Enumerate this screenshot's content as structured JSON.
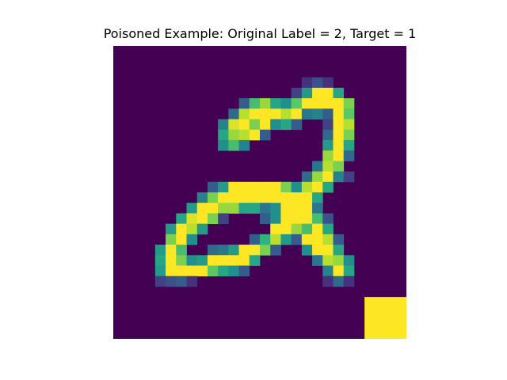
{
  "figure": {
    "title": "Poisoned Example: Original Label = 2, Target = 1"
  },
  "image": {
    "grid_size": 28,
    "colormap": "viridis",
    "background_color": "#440154",
    "trigger": {
      "description_color": "#fde725",
      "rows": [
        24,
        27
      ],
      "cols": [
        24,
        27
      ]
    },
    "pixels": [
      [
        0,
        0,
        0,
        0,
        0,
        0,
        0,
        0,
        0,
        0,
        0,
        0,
        0,
        0,
        0,
        0,
        0,
        0,
        0,
        0,
        0,
        0,
        0,
        0,
        0,
        0,
        0,
        0
      ],
      [
        0,
        0,
        0,
        0,
        0,
        0,
        0,
        0,
        0,
        0,
        0,
        0,
        0,
        0,
        0,
        0,
        0,
        0,
        0,
        0,
        0,
        0,
        0,
        0,
        0,
        0,
        0,
        0
      ],
      [
        0,
        0,
        0,
        0,
        0,
        0,
        0,
        0,
        0,
        0,
        0,
        0,
        0,
        0,
        0,
        0,
        0,
        0,
        0,
        0,
        0,
        0,
        0,
        0,
        0,
        0,
        0,
        0
      ],
      [
        0,
        0,
        0,
        0,
        0,
        0,
        0,
        0,
        0,
        0,
        0,
        0,
        0,
        0,
        0,
        0,
        0,
        0,
        0.15,
        0.25,
        0.15,
        0,
        0,
        0,
        0,
        0,
        0,
        0
      ],
      [
        0,
        0,
        0,
        0,
        0,
        0,
        0,
        0,
        0,
        0,
        0,
        0,
        0,
        0,
        0,
        0,
        0,
        0.2,
        0.55,
        1,
        1,
        0.6,
        0,
        0,
        0,
        0,
        0,
        0
      ],
      [
        0,
        0,
        0,
        0,
        0,
        0,
        0,
        0,
        0,
        0,
        0,
        0,
        0.3,
        0.7,
        0.85,
        0.6,
        0.5,
        0.75,
        1,
        1,
        1,
        1,
        0.8,
        0,
        0,
        0,
        0,
        0
      ],
      [
        0,
        0,
        0,
        0,
        0,
        0,
        0,
        0,
        0,
        0,
        0,
        0.35,
        0.9,
        1,
        1,
        1,
        0.9,
        1,
        0.4,
        0.45,
        0.3,
        1,
        0.75,
        0,
        0,
        0,
        0,
        0
      ],
      [
        0,
        0,
        0,
        0,
        0,
        0,
        0,
        0,
        0,
        0,
        0.45,
        0.95,
        1,
        0.8,
        1,
        0.5,
        0.6,
        0.3,
        0,
        0,
        0.2,
        1,
        0.9,
        0,
        0,
        0,
        0,
        0
      ],
      [
        0,
        0,
        0,
        0,
        0,
        0,
        0,
        0,
        0,
        0,
        0.6,
        0.85,
        0.9,
        1,
        0.3,
        0,
        0,
        0,
        0,
        0,
        0.35,
        1,
        0.8,
        0,
        0,
        0,
        0,
        0
      ],
      [
        0,
        0,
        0,
        0,
        0,
        0,
        0,
        0,
        0,
        0,
        0.5,
        0.7,
        0.45,
        0,
        0,
        0,
        0,
        0,
        0,
        0,
        0.55,
        1,
        0.6,
        0,
        0,
        0,
        0,
        0
      ],
      [
        0,
        0,
        0,
        0,
        0,
        0,
        0,
        0,
        0,
        0,
        0,
        0,
        0,
        0,
        0,
        0,
        0,
        0,
        0,
        0,
        0.85,
        1,
        0.35,
        0,
        0,
        0,
        0,
        0
      ],
      [
        0,
        0,
        0,
        0,
        0,
        0,
        0,
        0,
        0,
        0,
        0,
        0,
        0,
        0,
        0,
        0,
        0,
        0,
        0,
        0.4,
        0.9,
        0.8,
        0,
        0,
        0,
        0,
        0,
        0
      ],
      [
        0,
        0,
        0,
        0,
        0,
        0,
        0,
        0,
        0,
        0,
        0,
        0,
        0,
        0,
        0,
        0,
        0,
        0,
        0.35,
        0.85,
        1,
        0.45,
        0.2,
        0,
        0,
        0,
        0,
        0
      ],
      [
        0,
        0,
        0,
        0,
        0,
        0,
        0,
        0,
        0,
        0.3,
        0.55,
        1,
        1,
        1,
        1,
        1,
        0.8,
        0.5,
        0.9,
        1,
        0.6,
        0,
        0,
        0,
        0,
        0,
        0,
        0
      ],
      [
        0,
        0,
        0,
        0,
        0,
        0,
        0,
        0,
        0.45,
        0.8,
        1,
        1,
        1,
        1,
        1,
        1,
        1,
        1,
        1,
        0.6,
        0,
        0,
        0,
        0,
        0,
        0,
        0,
        0
      ],
      [
        0,
        0,
        0,
        0,
        0,
        0,
        0,
        0.55,
        1,
        1,
        0.85,
        0.85,
        0.6,
        0.6,
        0.4,
        0.5,
        1,
        1,
        1,
        0.4,
        0,
        0,
        0,
        0,
        0,
        0,
        0,
        0
      ],
      [
        0,
        0,
        0,
        0,
        0,
        0,
        0.6,
        0.95,
        1,
        0.8,
        0.2,
        0,
        0,
        0,
        0.3,
        0.5,
        1,
        1,
        1,
        0.7,
        0.25,
        0,
        0,
        0,
        0,
        0,
        0,
        0
      ],
      [
        0,
        0,
        0,
        0,
        0,
        0.55,
        1,
        0.9,
        0.55,
        0,
        0,
        0,
        0,
        0,
        0,
        1,
        1,
        0.85,
        0.7,
        1,
        0.6,
        0,
        0,
        0,
        0,
        0,
        0,
        0
      ],
      [
        0,
        0,
        0,
        0,
        0,
        0.8,
        1,
        0.5,
        0,
        0,
        0,
        0,
        0,
        0.3,
        0.65,
        0.9,
        0.55,
        0.3,
        1,
        1,
        0.9,
        0.3,
        0,
        0,
        0,
        0,
        0,
        0
      ],
      [
        0,
        0,
        0,
        0,
        0.55,
        1,
        0.7,
        0,
        0,
        0.35,
        0.4,
        0.55,
        1,
        1,
        0.8,
        0.3,
        0,
        0,
        0.5,
        1,
        1,
        0.6,
        0,
        0,
        0,
        0,
        0,
        0
      ],
      [
        0,
        0,
        0,
        0,
        0.6,
        1,
        0.8,
        0.5,
        0.55,
        1,
        1,
        1,
        1,
        0.6,
        0,
        0,
        0,
        0,
        0,
        0.4,
        0.9,
        0.85,
        0.5,
        0,
        0,
        0,
        0,
        0
      ],
      [
        0,
        0,
        0,
        0,
        0.55,
        1,
        1,
        1,
        1,
        0.75,
        0.6,
        0.5,
        0.3,
        0,
        0,
        0,
        0,
        0,
        0,
        0,
        0.45,
        1,
        0.6,
        0,
        0,
        0,
        0,
        0
      ],
      [
        0,
        0,
        0,
        0,
        0.2,
        0.25,
        0.3,
        0.15,
        0,
        0,
        0,
        0,
        0,
        0,
        0,
        0,
        0,
        0,
        0,
        0,
        0.15,
        0.35,
        0.15,
        0,
        0,
        0,
        0,
        0
      ],
      [
        0,
        0,
        0,
        0,
        0,
        0,
        0,
        0,
        0,
        0,
        0,
        0,
        0,
        0,
        0,
        0,
        0,
        0,
        0,
        0,
        0,
        0,
        0,
        0,
        0,
        0,
        0,
        0
      ],
      [
        0,
        0,
        0,
        0,
        0,
        0,
        0,
        0,
        0,
        0,
        0,
        0,
        0,
        0,
        0,
        0,
        0,
        0,
        0,
        0,
        0,
        0,
        0,
        0,
        1,
        1,
        1,
        1
      ],
      [
        0,
        0,
        0,
        0,
        0,
        0,
        0,
        0,
        0,
        0,
        0,
        0,
        0,
        0,
        0,
        0,
        0,
        0,
        0,
        0,
        0,
        0,
        0,
        0,
        1,
        1,
        1,
        1
      ],
      [
        0,
        0,
        0,
        0,
        0,
        0,
        0,
        0,
        0,
        0,
        0,
        0,
        0,
        0,
        0,
        0,
        0,
        0,
        0,
        0,
        0,
        0,
        0,
        0,
        1,
        1,
        1,
        1
      ],
      [
        0,
        0,
        0,
        0,
        0,
        0,
        0,
        0,
        0,
        0,
        0,
        0,
        0,
        0,
        0,
        0,
        0,
        0,
        0,
        0,
        0,
        0,
        0,
        0,
        1,
        1,
        1,
        1
      ]
    ]
  }
}
